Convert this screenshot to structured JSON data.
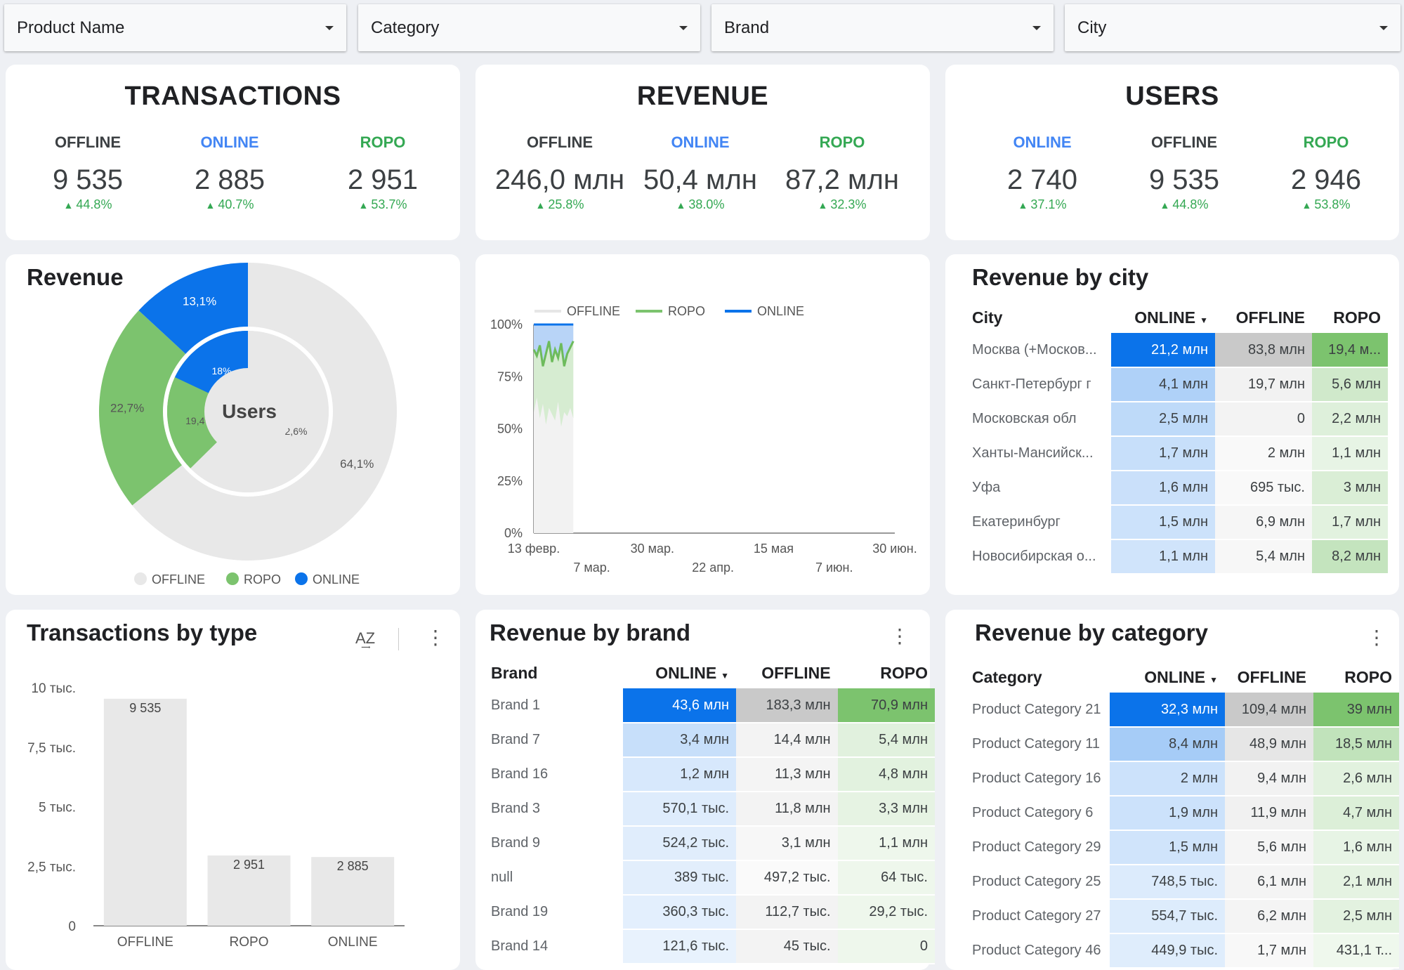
{
  "filters": [
    {
      "label": "Product Name"
    },
    {
      "label": "Category"
    },
    {
      "label": "Brand"
    },
    {
      "label": "City"
    }
  ],
  "kpi_cards": [
    {
      "title": "TRANSACTIONS",
      "metrics": [
        {
          "label": "OFFLINE",
          "value": "9 535",
          "change": "44.8%",
          "color": "#3c4043"
        },
        {
          "label": "ONLINE",
          "value": "2 885",
          "change": "40.7%",
          "color": "#4285f4"
        },
        {
          "label": "ROPO",
          "value": "2 951",
          "change": "53.7%",
          "color": "#34a853"
        }
      ]
    },
    {
      "title": "REVENUE",
      "metrics": [
        {
          "label": "OFFLINE",
          "value": "246,0 млн",
          "change": "25.8%",
          "color": "#3c4043"
        },
        {
          "label": "ONLINE",
          "value": "50,4 млн",
          "change": "38.0%",
          "color": "#4285f4"
        },
        {
          "label": "ROPO",
          "value": "87,2 млн",
          "change": "32.3%",
          "color": "#34a853"
        }
      ]
    },
    {
      "title": "USERS",
      "metrics": [
        {
          "label": "ONLINE",
          "value": "2 740",
          "change": "37.1%",
          "color": "#4285f4"
        },
        {
          "label": "OFFLINE",
          "value": "9 535",
          "change": "44.8%",
          "color": "#3c4043"
        },
        {
          "label": "ROPO",
          "value": "2 946",
          "change": "53.8%",
          "color": "#34a853"
        }
      ]
    }
  ],
  "colors": {
    "offline": "#e8e8e8",
    "ropo": "#7cc36e",
    "online": "#0b73ea"
  },
  "chart_data": [
    {
      "type": "pie",
      "title": "Revenue",
      "center_label": "Users",
      "rings": [
        {
          "name": "",
          "slices": [
            {
              "name": "OFFLINE",
              "value": 64.1,
              "label": "64,1%"
            },
            {
              "name": "ROPO",
              "value": 22.7,
              "label": "22,7%"
            },
            {
              "name": "ONLINE",
              "value": 13.1,
              "label": "13,1%"
            }
          ]
        },
        {
          "name": "Users",
          "slices": [
            {
              "name": "OFFLINE",
              "value": 62.6,
              "label": "62,6%"
            },
            {
              "name": "ROPO",
              "value": 19.4,
              "label": "19,4%"
            },
            {
              "name": "ONLINE",
              "value": 18.0,
              "label": "18%"
            }
          ]
        }
      ],
      "legend": [
        "OFFLINE",
        "ROPO",
        "ONLINE"
      ],
      "legend_position": "bottom"
    },
    {
      "type": "area",
      "title": "",
      "stacked_percent": true,
      "legend": [
        "OFFLINE",
        "ROPO",
        "ONLINE"
      ],
      "legend_position": "top",
      "yticks": [
        "100%",
        "75%",
        "50%",
        "25%",
        "0%"
      ],
      "xticks": [
        "13 февр.",
        "7 мар.",
        "30 мар.",
        "22 апр.",
        "15 мая",
        "7 июн.",
        "30 июн."
      ],
      "x_range": [
        "2021-02-13",
        "2021-06-30"
      ],
      "data_range": [
        "2021-02-13",
        "2021-02-28"
      ],
      "ylim": [
        0,
        100
      ],
      "ropo_top_pct": [
        88,
        85,
        90,
        80,
        86,
        92,
        82,
        88,
        84,
        91,
        80,
        86,
        89,
        92
      ],
      "ropo_bottom_pct": [
        58,
        65,
        55,
        62,
        52,
        60,
        57,
        54,
        63,
        51,
        58,
        56,
        60,
        55
      ]
    },
    {
      "type": "bar",
      "title": "Transactions by type",
      "categories": [
        "OFFLINE",
        "ROPO",
        "ONLINE"
      ],
      "values": [
        9535,
        2951,
        2885
      ],
      "value_labels": [
        "9 535",
        "2 951",
        "2 885"
      ],
      "yticks": [
        {
          "v": 0,
          "label": "0"
        },
        {
          "v": 2500,
          "label": "2,5 тыс."
        },
        {
          "v": 5000,
          "label": "5 тыс."
        },
        {
          "v": 7500,
          "label": "7,5 тыс."
        },
        {
          "v": 10000,
          "label": "10 тыс."
        }
      ],
      "ylim": [
        0,
        10000
      ]
    },
    {
      "type": "table",
      "title": "Revenue by city",
      "columns": [
        "City",
        "ONLINE",
        "OFFLINE",
        "ROPO"
      ],
      "rows": [
        {
          "name": "Москва (+Москов...",
          "v": [
            "21,2 млн",
            "83,8 млн",
            "19,4 м..."
          ],
          "heat": [
            1,
            1,
            1
          ]
        },
        {
          "name": "Санкт-Петербург г",
          "v": [
            "4,1 млн",
            "19,7 млн",
            "5,6 млн"
          ],
          "heat": [
            0.2,
            0.1,
            0.25
          ]
        },
        {
          "name": "Московская обл",
          "v": [
            "2,5 млн",
            "0",
            "2,2 млн"
          ],
          "heat": [
            0.12,
            0,
            0.1
          ]
        },
        {
          "name": "Ханты-Мансийск...",
          "v": [
            "1,7 млн",
            "2 млн",
            "1,1 млн"
          ],
          "heat": [
            0.08,
            0.01,
            0.04
          ]
        },
        {
          "name": "Уфа",
          "v": [
            "1,6 млн",
            "695 тыс.",
            "3 млн"
          ],
          "heat": [
            0.07,
            0.005,
            0.14
          ]
        },
        {
          "name": "Екатеринбург",
          "v": [
            "1,5 млн",
            "6,9 млн",
            "1,7 млн"
          ],
          "heat": [
            0.06,
            0.03,
            0.07
          ]
        },
        {
          "name": "Новосибирская о...",
          "v": [
            "1,1 млн",
            "5,4 млн",
            "8,2 млн"
          ],
          "heat": [
            0.05,
            0.02,
            0.42
          ]
        }
      ]
    },
    {
      "type": "table",
      "title": "Revenue by brand",
      "columns": [
        "Brand",
        "ONLINE",
        "OFFLINE",
        "ROPO"
      ],
      "rows": [
        {
          "name": "Brand 1",
          "v": [
            "43,6 млн",
            "183,3 млн",
            "70,9 млн"
          ],
          "heat": [
            1,
            1,
            1
          ]
        },
        {
          "name": "Brand 7",
          "v": [
            "3,4 млн",
            "14,4 млн",
            "5,4 млн"
          ],
          "heat": [
            0.08,
            0.08,
            0.08
          ]
        },
        {
          "name": "Brand 16",
          "v": [
            "1,2 млн",
            "11,3 млн",
            "4,8 млн"
          ],
          "heat": [
            0.03,
            0.06,
            0.07
          ]
        },
        {
          "name": "Brand 3",
          "v": [
            "570,1 тыс.",
            "11,8 млн",
            "3,3 млн"
          ],
          "heat": [
            0.015,
            0.065,
            0.05
          ]
        },
        {
          "name": "Brand 9",
          "v": [
            "524,2 тыс.",
            "3,1 млн",
            "1,1 млн"
          ],
          "heat": [
            0.012,
            0.02,
            0.015
          ]
        },
        {
          "name": "null",
          "v": [
            "389 тыс.",
            "497,2 тыс.",
            "64 тыс."
          ],
          "heat": [
            0.01,
            0.003,
            0.001
          ]
        },
        {
          "name": "Brand 19",
          "v": [
            "360,3 тыс.",
            "112,7 тыс.",
            "29,2 тыс."
          ],
          "heat": [
            0.008,
            0.001,
            0
          ]
        },
        {
          "name": "Brand 14",
          "v": [
            "121,6 тыс.",
            "45 тыс.",
            "0"
          ],
          "heat": [
            0.003,
            0,
            0
          ]
        }
      ]
    },
    {
      "type": "table",
      "title": "Revenue by category",
      "columns": [
        "Category",
        "ONLINE",
        "OFFLINE",
        "ROPO"
      ],
      "rows": [
        {
          "name": "Product Category 21",
          "v": [
            "32,3 млн",
            "109,4 млн",
            "39 млн"
          ],
          "heat": [
            1,
            1,
            1
          ]
        },
        {
          "name": "Product Category 11",
          "v": [
            "8,4 млн",
            "48,9 млн",
            "18,5 млн"
          ],
          "heat": [
            0.26,
            0.45,
            0.47
          ]
        },
        {
          "name": "Product Category 16",
          "v": [
            "2 млн",
            "9,4 млн",
            "2,6 млн"
          ],
          "heat": [
            0.06,
            0.09,
            0.07
          ]
        },
        {
          "name": "Product Category 6",
          "v": [
            "1,9 млн",
            "11,9 млн",
            "4,7 млн"
          ],
          "heat": [
            0.06,
            0.11,
            0.12
          ]
        },
        {
          "name": "Product Category 29",
          "v": [
            "1,5 млн",
            "5,6 млн",
            "1,6 млн"
          ],
          "heat": [
            0.05,
            0.05,
            0.04
          ]
        },
        {
          "name": "Product Category 25",
          "v": [
            "748,5 тыс.",
            "6,1 млн",
            "2,1 млн"
          ],
          "heat": [
            0.02,
            0.055,
            0.055
          ]
        },
        {
          "name": "Product Category 27",
          "v": [
            "554,7 тыс.",
            "6,2 млн",
            "2,5 млн"
          ],
          "heat": [
            0.017,
            0.056,
            0.064
          ]
        },
        {
          "name": "Product Category 46",
          "v": [
            "449,9 тыс.",
            "1,7 млн",
            "431,1 т..."
          ],
          "heat": [
            0.014,
            0.015,
            0.011
          ]
        }
      ]
    }
  ]
}
